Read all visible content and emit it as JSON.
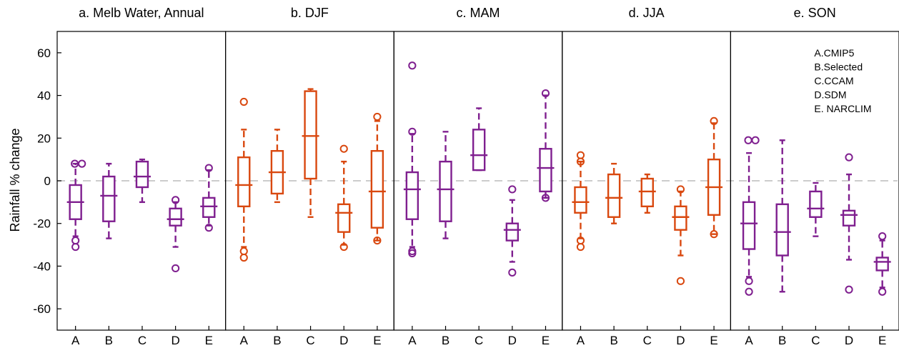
{
  "chart_data": {
    "type": "boxplot",
    "ylabel": "Rainfall % change",
    "ylim": [
      -70,
      70
    ],
    "yticks": [
      -60,
      -40,
      -20,
      0,
      20,
      40,
      60
    ],
    "reference_line": 0,
    "categories": [
      "A",
      "B",
      "C",
      "D",
      "E"
    ],
    "legend": {
      "placement": "top-right",
      "entries": [
        "A.CMIP5",
        "B.Selected",
        "C.CCAM",
        "D.SDM",
        "E. NARCLIM"
      ]
    },
    "colors": {
      "purple": "#7f1f8f",
      "orange": "#d9480f",
      "reference": "#bbbbbb"
    },
    "panels": [
      {
        "title": "a. Melb Water, Annual",
        "color": "purple",
        "boxes": [
          {
            "cat": "A",
            "q1": -18,
            "median": -10,
            "q3": -2,
            "whislo": -26,
            "whishi": 8,
            "outliers": [
              8,
              8,
              -28,
              -31
            ]
          },
          {
            "cat": "B",
            "q1": -19,
            "median": -7,
            "q3": 2,
            "whislo": -27,
            "whishi": 8,
            "outliers": []
          },
          {
            "cat": "C",
            "q1": -3,
            "median": 2,
            "q3": 9,
            "whislo": -10,
            "whishi": 10,
            "outliers": []
          },
          {
            "cat": "D",
            "q1": -21,
            "median": -18,
            "q3": -13,
            "whislo": -31,
            "whishi": -10,
            "outliers": [
              -9,
              -41
            ]
          },
          {
            "cat": "E",
            "q1": -17,
            "median": -12,
            "q3": -8,
            "whislo": -21,
            "whishi": 5,
            "outliers": [
              6,
              -22
            ]
          }
        ]
      },
      {
        "title": "b. DJF",
        "color": "orange",
        "boxes": [
          {
            "cat": "A",
            "q1": -12,
            "median": -2,
            "q3": 11,
            "whislo": -31,
            "whishi": 24,
            "outliers": [
              37,
              -33,
              -36
            ]
          },
          {
            "cat": "B",
            "q1": -6,
            "median": 4,
            "q3": 14,
            "whislo": -10,
            "whishi": 24,
            "outliers": []
          },
          {
            "cat": "C",
            "q1": 1,
            "median": 21,
            "q3": 42,
            "whislo": -17,
            "whishi": 43,
            "outliers": []
          },
          {
            "cat": "D",
            "q1": -24,
            "median": -15,
            "q3": -11,
            "whislo": -30,
            "whishi": 9,
            "outliers": [
              15,
              -31
            ]
          },
          {
            "cat": "E",
            "q1": -22,
            "median": -5,
            "q3": 14,
            "whislo": -28,
            "whishi": 28,
            "outliers": [
              30,
              -28
            ]
          }
        ]
      },
      {
        "title": "c. MAM",
        "color": "purple",
        "boxes": [
          {
            "cat": "A",
            "q1": -18,
            "median": -4,
            "q3": 4,
            "whislo": -31,
            "whishi": 22,
            "outliers": [
              23,
              54,
              -33,
              -34
            ]
          },
          {
            "cat": "B",
            "q1": -19,
            "median": -4,
            "q3": 9,
            "whislo": -27,
            "whishi": 23,
            "outliers": []
          },
          {
            "cat": "C",
            "q1": 5,
            "median": 12,
            "q3": 24,
            "whislo": 5,
            "whishi": 34,
            "outliers": []
          },
          {
            "cat": "D",
            "q1": -28,
            "median": -23,
            "q3": -20,
            "whislo": -38,
            "whishi": -9,
            "outliers": [
              -4,
              -43
            ]
          },
          {
            "cat": "E",
            "q1": -5,
            "median": 6,
            "q3": 15,
            "whislo": -8,
            "whishi": 40,
            "outliers": [
              41,
              -8
            ]
          }
        ]
      },
      {
        "title": "d. JJA",
        "color": "orange",
        "boxes": [
          {
            "cat": "A",
            "q1": -15,
            "median": -10,
            "q3": -3,
            "whislo": -27,
            "whishi": 9,
            "outliers": [
              12,
              9,
              -28,
              -31
            ]
          },
          {
            "cat": "B",
            "q1": -17,
            "median": -8,
            "q3": 3,
            "whislo": -20,
            "whishi": 8,
            "outliers": []
          },
          {
            "cat": "C",
            "q1": -12,
            "median": -5,
            "q3": 1,
            "whislo": -15,
            "whishi": 3,
            "outliers": []
          },
          {
            "cat": "D",
            "q1": -23,
            "median": -17,
            "q3": -12,
            "whislo": -35,
            "whishi": -5,
            "outliers": [
              -4,
              -47
            ]
          },
          {
            "cat": "E",
            "q1": -16,
            "median": -3,
            "q3": 10,
            "whislo": -25,
            "whishi": 27,
            "outliers": [
              28,
              -25
            ]
          }
        ]
      },
      {
        "title": "e. SON",
        "color": "purple",
        "boxes": [
          {
            "cat": "A",
            "q1": -32,
            "median": -20,
            "q3": -10,
            "whislo": -45,
            "whishi": 13,
            "outliers": [
              19,
              19,
              -47,
              -52
            ]
          },
          {
            "cat": "B",
            "q1": -35,
            "median": -24,
            "q3": -11,
            "whislo": -52,
            "whishi": 19,
            "outliers": []
          },
          {
            "cat": "C",
            "q1": -17,
            "median": -13,
            "q3": -5,
            "whislo": -26,
            "whishi": -1,
            "outliers": []
          },
          {
            "cat": "D",
            "q1": -21,
            "median": -16,
            "q3": -14,
            "whislo": -37,
            "whishi": 3,
            "outliers": [
              11,
              -51
            ]
          },
          {
            "cat": "E",
            "q1": -42,
            "median": -38,
            "q3": -36,
            "whislo": -50,
            "whishi": -28,
            "outliers": [
              -26,
              -52
            ]
          }
        ]
      }
    ]
  }
}
